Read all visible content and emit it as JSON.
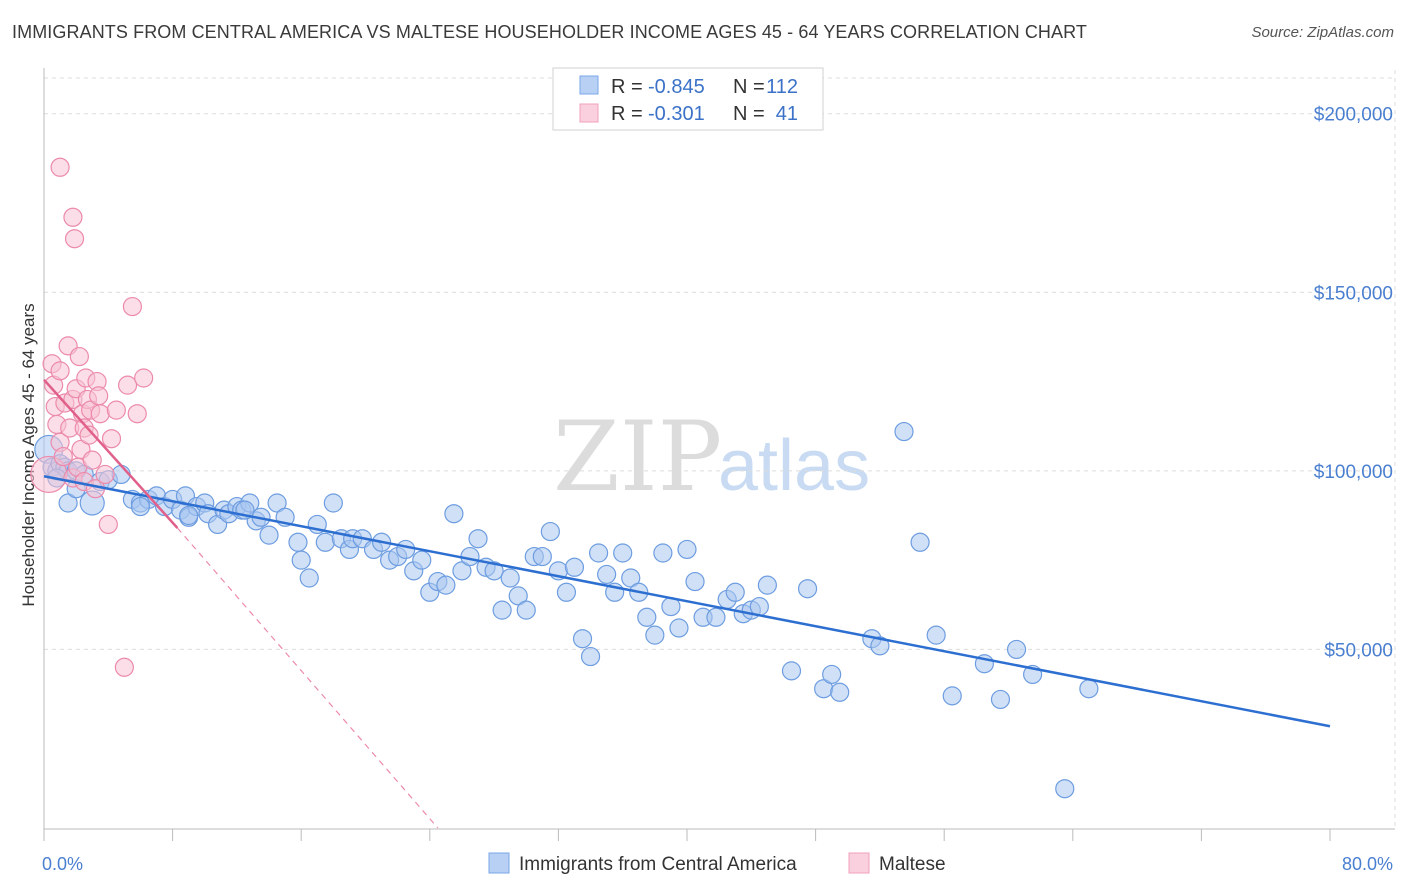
{
  "title": "IMMIGRANTS FROM CENTRAL AMERICA VS MALTESE HOUSEHOLDER INCOME AGES 45 - 64 YEARS CORRELATION CHART",
  "source": "Source: ZipAtlas.com",
  "watermark": {
    "zip": "ZIP",
    "atlas": "atlas"
  },
  "legend": {
    "rows": [
      {
        "r_label": "R =",
        "r_value": "-0.845",
        "n_label": "N =",
        "n_value": "112",
        "color": "#7aa7e8"
      },
      {
        "r_label": "R =",
        "r_value": "-0.301",
        "n_label": "N =",
        "n_value": "41",
        "color": "#f2a0bb"
      }
    ]
  },
  "colors": {
    "blue_fill": "#a9c7f0",
    "blue_stroke": "#6d9de0",
    "blue_line": "#2d6fd1",
    "pink_fill": "#f8c3d3",
    "pink_stroke": "#ec8aab",
    "pink_line": "#e0608a",
    "grid": "#dcdcdc",
    "tick_text": "#4a7fd0"
  },
  "chart_data": {
    "type": "scatter",
    "title": "IMMIGRANTS FROM CENTRAL AMERICA VS MALTESE HOUSEHOLDER INCOME AGES 45 - 64 YEARS CORRELATION CHART",
    "xlabel": "",
    "ylabel": "Householder Income Ages 45 - 64 years",
    "xlim": [
      0,
      80
    ],
    "ylim": [
      0,
      210000
    ],
    "x_tick_labels": [
      "0.0%",
      "80.0%"
    ],
    "y_ticks": [
      50000,
      100000,
      150000,
      200000
    ],
    "y_tick_labels": [
      "$50,000",
      "$100,000",
      "$150,000",
      "$200,000"
    ],
    "grid": true,
    "legend_position": "bottom",
    "series": [
      {
        "name": "Immigrants from Central America",
        "color": "#7aa7e8",
        "trend": {
          "x": [
            0,
            80
          ],
          "y": [
            98500,
            28500
          ],
          "style": "solid"
        },
        "points": [
          [
            0.3,
            106000
          ],
          [
            0.5,
            101000
          ],
          [
            0.8,
            100000
          ],
          [
            1.0,
            102000
          ],
          [
            1.3,
            101000
          ],
          [
            1.5,
            100000
          ],
          [
            2.0,
            100000
          ],
          [
            2.5,
            99000
          ],
          [
            3.0,
            91000
          ],
          [
            3.5,
            97000
          ],
          [
            4.0,
            97500
          ],
          [
            4.8,
            99000
          ],
          [
            5.5,
            92000
          ],
          [
            6.0,
            91000
          ],
          [
            6.5,
            92000
          ],
          [
            7.0,
            93000
          ],
          [
            7.5,
            90000
          ],
          [
            8.0,
            92000
          ],
          [
            8.5,
            89000
          ],
          [
            8.8,
            93000
          ],
          [
            9.0,
            87000
          ],
          [
            9.5,
            90000
          ],
          [
            10.0,
            91000
          ],
          [
            10.2,
            88000
          ],
          [
            10.8,
            85000
          ],
          [
            11.2,
            89000
          ],
          [
            11.5,
            88000
          ],
          [
            12.0,
            90000
          ],
          [
            12.3,
            89000
          ],
          [
            12.8,
            91000
          ],
          [
            13.2,
            86000
          ],
          [
            13.5,
            87000
          ],
          [
            14.0,
            82000
          ],
          [
            14.5,
            91000
          ],
          [
            15.0,
            87000
          ],
          [
            15.8,
            80000
          ],
          [
            16.0,
            75000
          ],
          [
            16.5,
            70000
          ],
          [
            17.0,
            85000
          ],
          [
            17.5,
            80000
          ],
          [
            18.0,
            91000
          ],
          [
            18.5,
            81000
          ],
          [
            19.0,
            78000
          ],
          [
            19.2,
            81000
          ],
          [
            19.8,
            81000
          ],
          [
            20.5,
            78000
          ],
          [
            21.0,
            80000
          ],
          [
            21.5,
            75000
          ],
          [
            22.0,
            76000
          ],
          [
            22.5,
            78000
          ],
          [
            23.0,
            72000
          ],
          [
            23.5,
            75000
          ],
          [
            24.0,
            66000
          ],
          [
            24.5,
            69000
          ],
          [
            25.0,
            68000
          ],
          [
            25.5,
            88000
          ],
          [
            26.0,
            72000
          ],
          [
            26.5,
            76000
          ],
          [
            27.0,
            81000
          ],
          [
            27.5,
            73000
          ],
          [
            28.0,
            72000
          ],
          [
            28.5,
            61000
          ],
          [
            29.0,
            70000
          ],
          [
            29.5,
            65000
          ],
          [
            30.0,
            61000
          ],
          [
            30.5,
            76000
          ],
          [
            31.0,
            76000
          ],
          [
            31.5,
            83000
          ],
          [
            32.0,
            72000
          ],
          [
            32.5,
            66000
          ],
          [
            33.0,
            73000
          ],
          [
            33.5,
            53000
          ],
          [
            34.0,
            48000
          ],
          [
            34.5,
            77000
          ],
          [
            35.0,
            71000
          ],
          [
            35.5,
            66000
          ],
          [
            36.0,
            77000
          ],
          [
            36.5,
            70000
          ],
          [
            37.0,
            66000
          ],
          [
            37.5,
            59000
          ],
          [
            38.0,
            54000
          ],
          [
            38.5,
            77000
          ],
          [
            39.0,
            62000
          ],
          [
            39.5,
            56000
          ],
          [
            40.0,
            78000
          ],
          [
            40.5,
            69000
          ],
          [
            41.0,
            59000
          ],
          [
            41.8,
            59000
          ],
          [
            42.5,
            64000
          ],
          [
            43.0,
            66000
          ],
          [
            43.5,
            60000
          ],
          [
            44.0,
            61000
          ],
          [
            44.5,
            62000
          ],
          [
            45.0,
            68000
          ],
          [
            46.5,
            44000
          ],
          [
            47.5,
            67000
          ],
          [
            48.5,
            39000
          ],
          [
            49.0,
            43000
          ],
          [
            49.5,
            38000
          ],
          [
            51.5,
            53000
          ],
          [
            52.0,
            51000
          ],
          [
            53.5,
            111000
          ],
          [
            54.5,
            80000
          ],
          [
            55.5,
            54000
          ],
          [
            56.5,
            37000
          ],
          [
            58.5,
            46000
          ],
          [
            59.5,
            36000
          ],
          [
            60.5,
            50000
          ],
          [
            61.5,
            43000
          ],
          [
            63.5,
            11000
          ],
          [
            65.0,
            39000
          ],
          [
            1.5,
            91000
          ],
          [
            2.0,
            95000
          ],
          [
            0.8,
            98000
          ],
          [
            6.0,
            90000
          ],
          [
            9.0,
            87500
          ],
          [
            12.5,
            89000
          ]
        ]
      },
      {
        "name": "Maltese",
        "color": "#f2a0bb",
        "trend": {
          "x": [
            0,
            8.3
          ],
          "y": [
            125500,
            84000
          ],
          "style": "solid",
          "dashed_extension_to": [
            24.5,
            0
          ]
        },
        "points": [
          [
            0.3,
            99000
          ],
          [
            0.5,
            130000
          ],
          [
            0.6,
            124000
          ],
          [
            0.7,
            118000
          ],
          [
            0.8,
            113000
          ],
          [
            1.0,
            108000
          ],
          [
            1.0,
            128000
          ],
          [
            1.2,
            104000
          ],
          [
            1.3,
            119000
          ],
          [
            1.5,
            135000
          ],
          [
            1.6,
            112000
          ],
          [
            1.8,
            98000
          ],
          [
            1.8,
            120000
          ],
          [
            2.0,
            123000
          ],
          [
            2.1,
            101000
          ],
          [
            2.2,
            132000
          ],
          [
            2.3,
            106000
          ],
          [
            2.4,
            116000
          ],
          [
            2.5,
            97000
          ],
          [
            2.5,
            112000
          ],
          [
            2.6,
            126000
          ],
          [
            2.7,
            120000
          ],
          [
            2.8,
            110000
          ],
          [
            2.9,
            117000
          ],
          [
            3.0,
            103000
          ],
          [
            3.2,
            95000
          ],
          [
            3.3,
            125000
          ],
          [
            3.4,
            121000
          ],
          [
            3.5,
            116000
          ],
          [
            3.8,
            99000
          ],
          [
            4.0,
            85000
          ],
          [
            4.2,
            109000
          ],
          [
            4.5,
            117000
          ],
          [
            5.2,
            124000
          ],
          [
            5.5,
            146000
          ],
          [
            5.8,
            116000
          ],
          [
            6.2,
            126000
          ],
          [
            1.0,
            185000
          ],
          [
            1.8,
            171000
          ],
          [
            1.9,
            165000
          ],
          [
            5.0,
            45000
          ]
        ]
      }
    ]
  },
  "bottom_legend": {
    "items": [
      {
        "label": "Immigrants from Central America"
      },
      {
        "label": "Maltese"
      }
    ]
  }
}
